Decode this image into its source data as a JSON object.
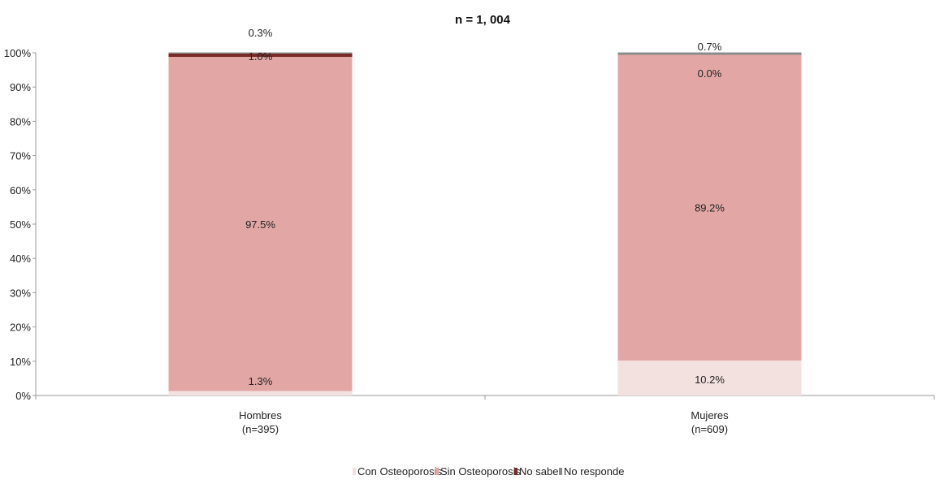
{
  "chart_data": {
    "type": "bar",
    "stacked": true,
    "title": "n = 1, 004",
    "xlabel": "",
    "ylabel": "",
    "ylim": [
      0,
      100
    ],
    "y_ticks": [
      "0%",
      "10%",
      "20%",
      "30%",
      "40%",
      "50%",
      "60%",
      "70%",
      "80%",
      "90%",
      "100%"
    ],
    "categories": [
      {
        "name": "Hombres",
        "n": "(n=395)"
      },
      {
        "name": "Mujeres",
        "n": "(n=609)"
      }
    ],
    "series": [
      {
        "name": "Con Osteoporosis",
        "color": "#f3e1df",
        "values": [
          1.3,
          10.2
        ],
        "labels": [
          "1.3%",
          "10.2%"
        ]
      },
      {
        "name": "Sin Osteoporosis",
        "color": "#e2a7a5",
        "values": [
          97.5,
          89.2
        ],
        "labels": [
          "97.5%",
          "89.2%"
        ]
      },
      {
        "name": "No sabe",
        "color": "#7a2a26",
        "values": [
          1.0,
          0.0
        ],
        "labels": [
          "1.0%",
          "0.0%"
        ]
      },
      {
        "name": "No responde",
        "color": "#8a8a8a",
        "values": [
          0.3,
          0.7
        ],
        "labels": [
          "0.3%",
          "0.7%"
        ]
      }
    ],
    "legend_position": "bottom",
    "grid": false
  }
}
